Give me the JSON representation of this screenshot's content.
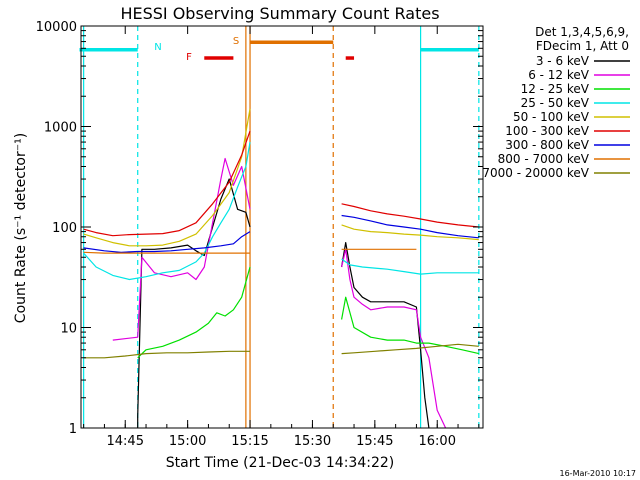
{
  "chart_data": {
    "type": "line",
    "title": "HESSI Observing Summary Count Rates",
    "xlabel": "Start Time (21-Dec-03 14:34:22)",
    "ylabel": "Count Rate (s⁻¹ detector⁻¹)",
    "y_scale": "log",
    "ylim": [
      1,
      10000
    ],
    "xlim": [
      "14:34:22",
      "16:11:00"
    ],
    "x_ticks": [
      "14:45",
      "15:00",
      "15:15",
      "15:30",
      "15:45",
      "16:00"
    ],
    "y_ticks": [
      "1",
      "10",
      "100",
      "1000",
      "10000"
    ],
    "legend_header": [
      "Det 1,3,4,5,6,9,",
      "FDecim 1, Att 0"
    ],
    "legend_position": "right",
    "footer": "16-Mar-2010 10:17",
    "annotations": [
      {
        "label": "N",
        "color": "#00e5e5"
      },
      {
        "label": "S",
        "color": "#e07000"
      },
      {
        "label": "F",
        "color": "#e00000"
      }
    ],
    "bars": [
      {
        "label": "night",
        "color": "#00e5e5",
        "y": 5800,
        "ranges": [
          [
            "14:34",
            "14:48"
          ],
          [
            "15:56",
            "16:10"
          ]
        ]
      },
      {
        "label": "saa",
        "color": "#e07000",
        "y": 6900,
        "ranges": [
          [
            "15:15",
            "15:35"
          ]
        ]
      },
      {
        "label": "flare",
        "color": "#e00000",
        "y": 4800,
        "ranges": [
          [
            "15:04",
            "15:11"
          ],
          [
            "15:38",
            "15:40"
          ]
        ]
      }
    ],
    "vlines": [
      {
        "time": "14:35",
        "color": "#00e5e5",
        "style": "solid"
      },
      {
        "time": "14:48",
        "color": "#00e5e5",
        "style": "dashed"
      },
      {
        "time": "15:56",
        "color": "#00e5e5",
        "style": "solid"
      },
      {
        "time": "16:10",
        "color": "#00e5e5",
        "style": "dashed"
      },
      {
        "time": "15:14",
        "color": "#e07000",
        "style": "solid"
      },
      {
        "time": "15:15",
        "color": "#e07000",
        "style": "solid"
      },
      {
        "time": "15:35",
        "color": "#e07000",
        "style": "dashed"
      }
    ],
    "series": [
      {
        "name": "3 - 6 keV",
        "color": "#000000",
        "segments": [
          [
            [
              "14:48",
              1
            ],
            [
              "14:48",
              1.3
            ],
            [
              "14:49",
              60
            ],
            [
              "14:52",
              60
            ],
            [
              "14:56",
              62
            ],
            [
              "15:00",
              66
            ],
            [
              "15:02",
              58
            ],
            [
              "15:04",
              52
            ],
            [
              "15:06",
              100
            ],
            [
              "15:08",
              190
            ],
            [
              "15:10",
              300
            ],
            [
              "15:12",
              150
            ],
            [
              "15:14",
              140
            ],
            [
              "15:15",
              100
            ]
          ],
          [
            [
              "15:37",
              40
            ],
            [
              "15:38",
              70
            ],
            [
              "15:39",
              40
            ],
            [
              "15:40",
              25
            ],
            [
              "15:42",
              20
            ],
            [
              "15:44",
              18
            ],
            [
              "15:48",
              18
            ],
            [
              "15:52",
              18
            ],
            [
              "15:55",
              16
            ],
            [
              "15:56",
              6
            ],
            [
              "15:57",
              2
            ],
            [
              "15:58",
              1
            ]
          ]
        ]
      },
      {
        "name": "6 - 12 keV",
        "color": "#e000e0",
        "segments": [
          [
            [
              "14:42",
              7.5
            ],
            [
              "14:48",
              8
            ],
            [
              "14:49",
              50
            ],
            [
              "14:52",
              35
            ],
            [
              "14:56",
              32
            ],
            [
              "15:00",
              35
            ],
            [
              "15:02",
              30
            ],
            [
              "15:04",
              40
            ],
            [
              "15:06",
              110
            ],
            [
              "15:08",
              300
            ],
            [
              "15:09",
              480
            ],
            [
              "15:11",
              260
            ],
            [
              "15:13",
              400
            ],
            [
              "15:15",
              150
            ]
          ],
          [
            [
              "15:37",
              40
            ],
            [
              "15:38",
              60
            ],
            [
              "15:39",
              30
            ],
            [
              "15:40",
              20
            ],
            [
              "15:42",
              17
            ],
            [
              "15:44",
              15
            ],
            [
              "15:48",
              16
            ],
            [
              "15:52",
              16
            ],
            [
              "15:55",
              15
            ],
            [
              "15:56",
              8
            ],
            [
              "15:58",
              5
            ],
            [
              "16:00",
              1.5
            ],
            [
              "16:02",
              1
            ]
          ]
        ]
      },
      {
        "name": "12 - 25 keV",
        "color": "#00e000",
        "segments": [
          [
            [
              "14:48",
              5
            ],
            [
              "14:50",
              6
            ],
            [
              "14:54",
              6.5
            ],
            [
              "14:58",
              7.5
            ],
            [
              "15:02",
              9
            ],
            [
              "15:05",
              11
            ],
            [
              "15:07",
              14
            ],
            [
              "15:09",
              13
            ],
            [
              "15:11",
              15
            ],
            [
              "15:13",
              20
            ],
            [
              "15:15",
              40
            ]
          ],
          [
            [
              "15:37",
              12
            ],
            [
              "15:38",
              20
            ],
            [
              "15:40",
              10
            ],
            [
              "15:44",
              8
            ],
            [
              "15:48",
              7.5
            ],
            [
              "15:52",
              7.5
            ],
            [
              "15:55",
              7
            ],
            [
              "15:58",
              7
            ],
            [
              "16:02",
              6.5
            ],
            [
              "16:06",
              6
            ],
            [
              "16:10",
              5.5
            ]
          ]
        ]
      },
      {
        "name": "25 - 50 keV",
        "color": "#00e5e5",
        "segments": [
          [
            [
              "14:35",
              55
            ],
            [
              "14:38",
              40
            ],
            [
              "14:42",
              33
            ],
            [
              "14:46",
              30
            ],
            [
              "14:50",
              32
            ],
            [
              "14:54",
              35
            ],
            [
              "14:58",
              37
            ],
            [
              "15:02",
              45
            ],
            [
              "15:04",
              55
            ],
            [
              "15:06",
              80
            ],
            [
              "15:08",
              110
            ],
            [
              "15:10",
              150
            ],
            [
              "15:12",
              250
            ],
            [
              "15:14",
              400
            ],
            [
              "15:15",
              700
            ]
          ],
          [
            [
              "15:37",
              48
            ],
            [
              "15:39",
              42
            ],
            [
              "15:42",
              40
            ],
            [
              "15:48",
              38
            ],
            [
              "15:52",
              36
            ],
            [
              "15:56",
              34
            ],
            [
              "16:00",
              35
            ],
            [
              "16:05",
              35
            ],
            [
              "16:10",
              35
            ]
          ]
        ]
      },
      {
        "name": "50 - 100 keV",
        "color": "#d0c000",
        "segments": [
          [
            [
              "14:35",
              85
            ],
            [
              "14:38",
              78
            ],
            [
              "14:42",
              70
            ],
            [
              "14:46",
              65
            ],
            [
              "14:50",
              65
            ],
            [
              "14:54",
              66
            ],
            [
              "14:58",
              72
            ],
            [
              "15:02",
              85
            ],
            [
              "15:06",
              130
            ],
            [
              "15:10",
              220
            ],
            [
              "15:13",
              500
            ],
            [
              "15:15",
              1500
            ]
          ],
          [
            [
              "15:37",
              105
            ],
            [
              "15:40",
              95
            ],
            [
              "15:44",
              90
            ],
            [
              "15:48",
              88
            ],
            [
              "15:52",
              85
            ],
            [
              "15:56",
              83
            ],
            [
              "16:00",
              80
            ],
            [
              "16:05",
              78
            ],
            [
              "16:10",
              75
            ]
          ]
        ]
      },
      {
        "name": "100 - 300 keV",
        "color": "#e00000",
        "segments": [
          [
            [
              "14:35",
              95
            ],
            [
              "14:38",
              88
            ],
            [
              "14:42",
              82
            ],
            [
              "14:46",
              84
            ],
            [
              "14:50",
              85
            ],
            [
              "14:54",
              86
            ],
            [
              "14:58",
              92
            ],
            [
              "15:02",
              110
            ],
            [
              "15:06",
              170
            ],
            [
              "15:10",
              280
            ],
            [
              "15:13",
              520
            ],
            [
              "15:15",
              900
            ]
          ],
          [
            [
              "15:37",
              170
            ],
            [
              "15:40",
              160
            ],
            [
              "15:44",
              145
            ],
            [
              "15:48",
              135
            ],
            [
              "15:52",
              128
            ],
            [
              "15:56",
              120
            ],
            [
              "16:00",
              112
            ],
            [
              "16:05",
              105
            ],
            [
              "16:10",
              100
            ]
          ]
        ]
      },
      {
        "name": "300 - 800 keV",
        "color": "#0000e0",
        "segments": [
          [
            [
              "14:35",
              62
            ],
            [
              "14:40",
              58
            ],
            [
              "14:44",
              56
            ],
            [
              "14:48",
              57
            ],
            [
              "14:52",
              57
            ],
            [
              "14:56",
              58
            ],
            [
              "15:00",
              60
            ],
            [
              "15:04",
              62
            ],
            [
              "15:08",
              65
            ],
            [
              "15:11",
              68
            ],
            [
              "15:13",
              80
            ],
            [
              "15:15",
              90
            ]
          ],
          [
            [
              "15:37",
              130
            ],
            [
              "15:40",
              125
            ],
            [
              "15:44",
              115
            ],
            [
              "15:48",
              105
            ],
            [
              "15:52",
              100
            ],
            [
              "15:56",
              95
            ],
            [
              "16:00",
              88
            ],
            [
              "16:05",
              82
            ],
            [
              "16:10",
              78
            ]
          ]
        ]
      },
      {
        "name": "800 - 7000 keV",
        "color": "#e07000",
        "segments": [
          [
            [
              "14:35",
              56
            ],
            [
              "14:40",
              55
            ],
            [
              "14:45",
              55
            ],
            [
              "14:50",
              55
            ],
            [
              "14:55",
              55
            ],
            [
              "15:00",
              55
            ],
            [
              "15:05",
              55
            ],
            [
              "15:10",
              55
            ],
            [
              "15:15",
              55
            ]
          ],
          [
            [
              "15:37",
              60
            ],
            [
              "15:40",
              60
            ],
            [
              "15:45",
              60
            ],
            [
              "15:50",
              60
            ],
            [
              "15:55",
              60
            ]
          ]
        ]
      },
      {
        "name": "7000 - 20000 keV",
        "color": "#808000",
        "segments": [
          [
            [
              "14:35",
              5
            ],
            [
              "14:40",
              5
            ],
            [
              "14:45",
              5.2
            ],
            [
              "14:50",
              5.5
            ],
            [
              "14:55",
              5.6
            ],
            [
              "15:00",
              5.6
            ],
            [
              "15:05",
              5.7
            ],
            [
              "15:10",
              5.8
            ],
            [
              "15:15",
              5.8
            ]
          ],
          [
            [
              "15:37",
              5.5
            ],
            [
              "15:40",
              5.6
            ],
            [
              "15:45",
              5.8
            ],
            [
              "15:50",
              6
            ],
            [
              "15:55",
              6.2
            ],
            [
              "16:00",
              6.5
            ],
            [
              "16:05",
              6.8
            ],
            [
              "16:10",
              6.5
            ]
          ]
        ]
      }
    ]
  }
}
